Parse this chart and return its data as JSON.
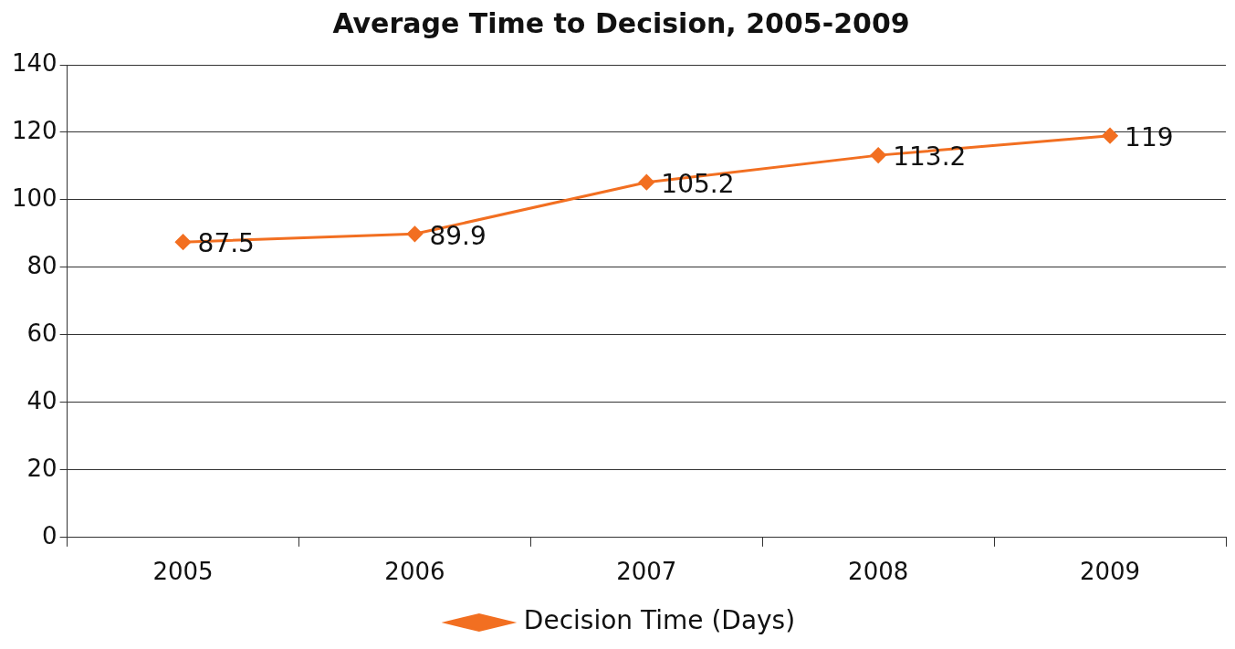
{
  "chart_data": {
    "type": "line",
    "title": "Average Time to Decision, 2005-2009",
    "categories": [
      "2005",
      "2006",
      "2007",
      "2008",
      "2009"
    ],
    "series": [
      {
        "name": "Decision Time (Days)",
        "color": "#f26f21",
        "values": [
          87.5,
          89.9,
          105.2,
          113.2,
          119
        ]
      }
    ],
    "ylim": [
      0,
      140
    ],
    "yticks": [
      0,
      20,
      40,
      60,
      80,
      100,
      120,
      140
    ],
    "grid": "y",
    "legend": "bottom",
    "marker": "diamond",
    "line_style": "solid",
    "data_labels": true
  }
}
